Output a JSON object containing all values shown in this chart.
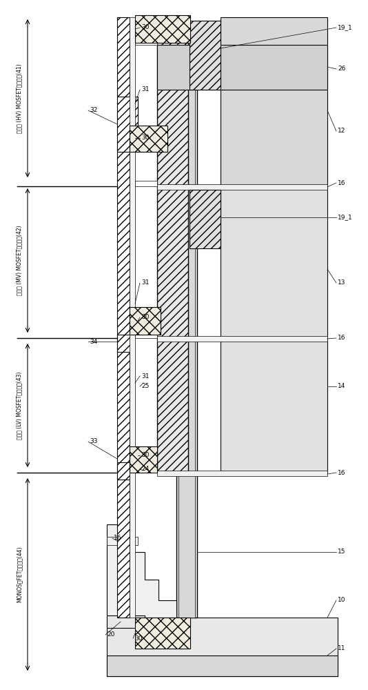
{
  "figsize": [
    5.34,
    10.0
  ],
  "dpi": 100,
  "bg_color": "#ffffff",
  "region_labels": [
    {
      "id": "41",
      "yb": 0.735,
      "yt": 0.98,
      "text": "高耐压 (HV) MOSFET形成区域(41)"
    },
    {
      "id": "42",
      "yb": 0.51,
      "yt": 0.735,
      "text": "中耐压 (MV) MOSFET形成区域(42)"
    },
    {
      "id": "43",
      "yb": 0.315,
      "yt": 0.51,
      "text": "低耐压 (LV) MOSFET形成区域(43)"
    },
    {
      "id": "44",
      "yb": 0.02,
      "yt": 0.315,
      "text": "MONOS型FET形成区域(44)"
    }
  ]
}
